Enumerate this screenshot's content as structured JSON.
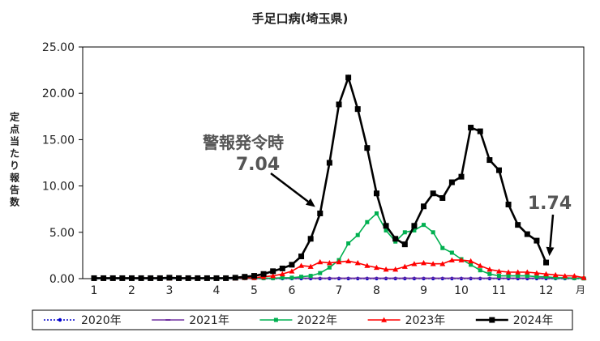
{
  "chart_data": {
    "type": "line",
    "title": "手足口病(埼玉県)",
    "ylabel": "定点当たり報告数",
    "xlabel": "月",
    "ylim": [
      0,
      25
    ],
    "yticks": [
      "0.00",
      "5.00",
      "10.00",
      "15.00",
      "20.00",
      "25.00"
    ],
    "ytick_values": [
      0,
      5,
      10,
      15,
      20,
      25
    ],
    "x_unit": "week",
    "xlim": [
      1,
      53
    ],
    "month_labels": [
      "1",
      "2",
      "3",
      "4",
      "5",
      "6",
      "7",
      "8",
      "9",
      "10",
      "11",
      "12"
    ],
    "month_label_weeks": [
      1,
      5,
      9,
      14,
      18,
      22,
      27,
      31,
      36,
      40,
      44,
      49
    ],
    "grid": false,
    "legend_position": "bottom",
    "series": [
      {
        "name": "2020年",
        "color": "#0000cc",
        "marker": "circle",
        "dashed": true,
        "values": [
          0.01,
          0.01,
          0.01,
          0.01,
          0.01,
          0.01,
          0.01,
          0.01,
          0.01,
          0.01,
          0.01,
          0.01,
          0.01,
          0.01,
          0.01,
          0.01,
          0.01,
          0.01,
          0.01,
          0.01,
          0.01,
          0.01,
          0.01,
          0.01,
          0.01,
          0.01,
          0.01,
          0.01,
          0.01,
          0.01,
          0.01,
          0.01,
          0.01,
          0.01,
          0.01,
          0.01,
          0.01,
          0.01,
          0.01,
          0.01,
          0.01,
          0.01,
          0.01,
          0.01,
          0.01,
          0.01,
          0.01,
          0.01,
          0.01,
          0.01,
          0.01,
          0.01,
          0.01
        ]
      },
      {
        "name": "2021年",
        "color": "#7030a0",
        "marker": "dash",
        "dashed": false,
        "values": [
          0.02,
          0.02,
          0.02,
          0.02,
          0.02,
          0.02,
          0.02,
          0.02,
          0.02,
          0.02,
          0.02,
          0.02,
          0.02,
          0.02,
          0.02,
          0.02,
          0.02,
          0.02,
          0.02,
          0.02,
          0.05,
          0.05,
          0.05,
          0.05,
          0.05,
          0.05,
          0.05,
          0.05,
          0.05,
          0.05,
          0.05,
          0.05,
          0.05,
          0.05,
          0.05,
          0.05,
          0.05,
          0.05,
          0.05,
          0.05,
          0.05,
          0.05,
          0.05,
          0.05,
          0.05,
          0.05,
          0.05,
          0.05,
          0.05,
          0.05,
          0.05,
          0.05,
          0.05
        ]
      },
      {
        "name": "2022年",
        "color": "#00b050",
        "marker": "square",
        "dashed": false,
        "values": [
          0.02,
          0.02,
          0.02,
          0.02,
          0.02,
          0.02,
          0.02,
          0.02,
          0.02,
          0.02,
          0.02,
          0.02,
          0.02,
          0.02,
          0.02,
          0.03,
          0.05,
          0.05,
          0.05,
          0.05,
          0.1,
          0.1,
          0.2,
          0.3,
          0.6,
          1.2,
          2.0,
          3.8,
          4.7,
          6.1,
          7.04,
          5.2,
          4.0,
          5.0,
          5.2,
          5.8,
          5.0,
          3.3,
          2.8,
          2.1,
          1.5,
          0.9,
          0.5,
          0.3,
          0.3,
          0.3,
          0.3,
          0.2,
          0.2,
          0.1,
          0.1,
          0.05,
          0.02
        ]
      },
      {
        "name": "2023年",
        "color": "#ff0000",
        "marker": "triangle",
        "dashed": false,
        "values": [
          0.05,
          0.05,
          0.05,
          0.05,
          0.05,
          0.05,
          0.05,
          0.05,
          0.05,
          0.05,
          0.05,
          0.05,
          0.05,
          0.05,
          0.05,
          0.05,
          0.1,
          0.1,
          0.2,
          0.3,
          0.5,
          0.8,
          1.4,
          1.3,
          1.8,
          1.7,
          1.8,
          1.9,
          1.7,
          1.4,
          1.2,
          1.0,
          1.0,
          1.3,
          1.6,
          1.7,
          1.6,
          1.6,
          2.0,
          2.0,
          1.9,
          1.4,
          1.0,
          0.8,
          0.7,
          0.7,
          0.7,
          0.6,
          0.5,
          0.4,
          0.3,
          0.3,
          0.1
        ]
      },
      {
        "name": "2024年",
        "color": "#000000",
        "marker": "square",
        "dashed": false,
        "values": [
          0.05,
          0.05,
          0.05,
          0.05,
          0.05,
          0.05,
          0.05,
          0.05,
          0.1,
          0.05,
          0.05,
          0.05,
          0.05,
          0.05,
          0.05,
          0.1,
          0.2,
          0.3,
          0.5,
          0.8,
          1.1,
          1.5,
          2.4,
          4.3,
          7.04,
          12.5,
          18.8,
          21.7,
          18.3,
          14.1,
          9.2,
          5.7,
          4.3,
          3.7,
          5.7,
          7.8,
          9.2,
          8.7,
          10.4,
          11.0,
          16.3,
          15.9,
          12.8,
          11.7,
          8.0,
          5.8,
          4.8,
          4.1,
          1.74,
          null,
          null,
          null,
          null
        ]
      }
    ],
    "annotations": [
      {
        "text": "警報発令時",
        "week": 25,
        "value": 7.04
      },
      {
        "text": "7.04",
        "week": 25,
        "value": 7.04
      },
      {
        "text": "1.74",
        "week": 49,
        "value": 1.74
      }
    ]
  }
}
